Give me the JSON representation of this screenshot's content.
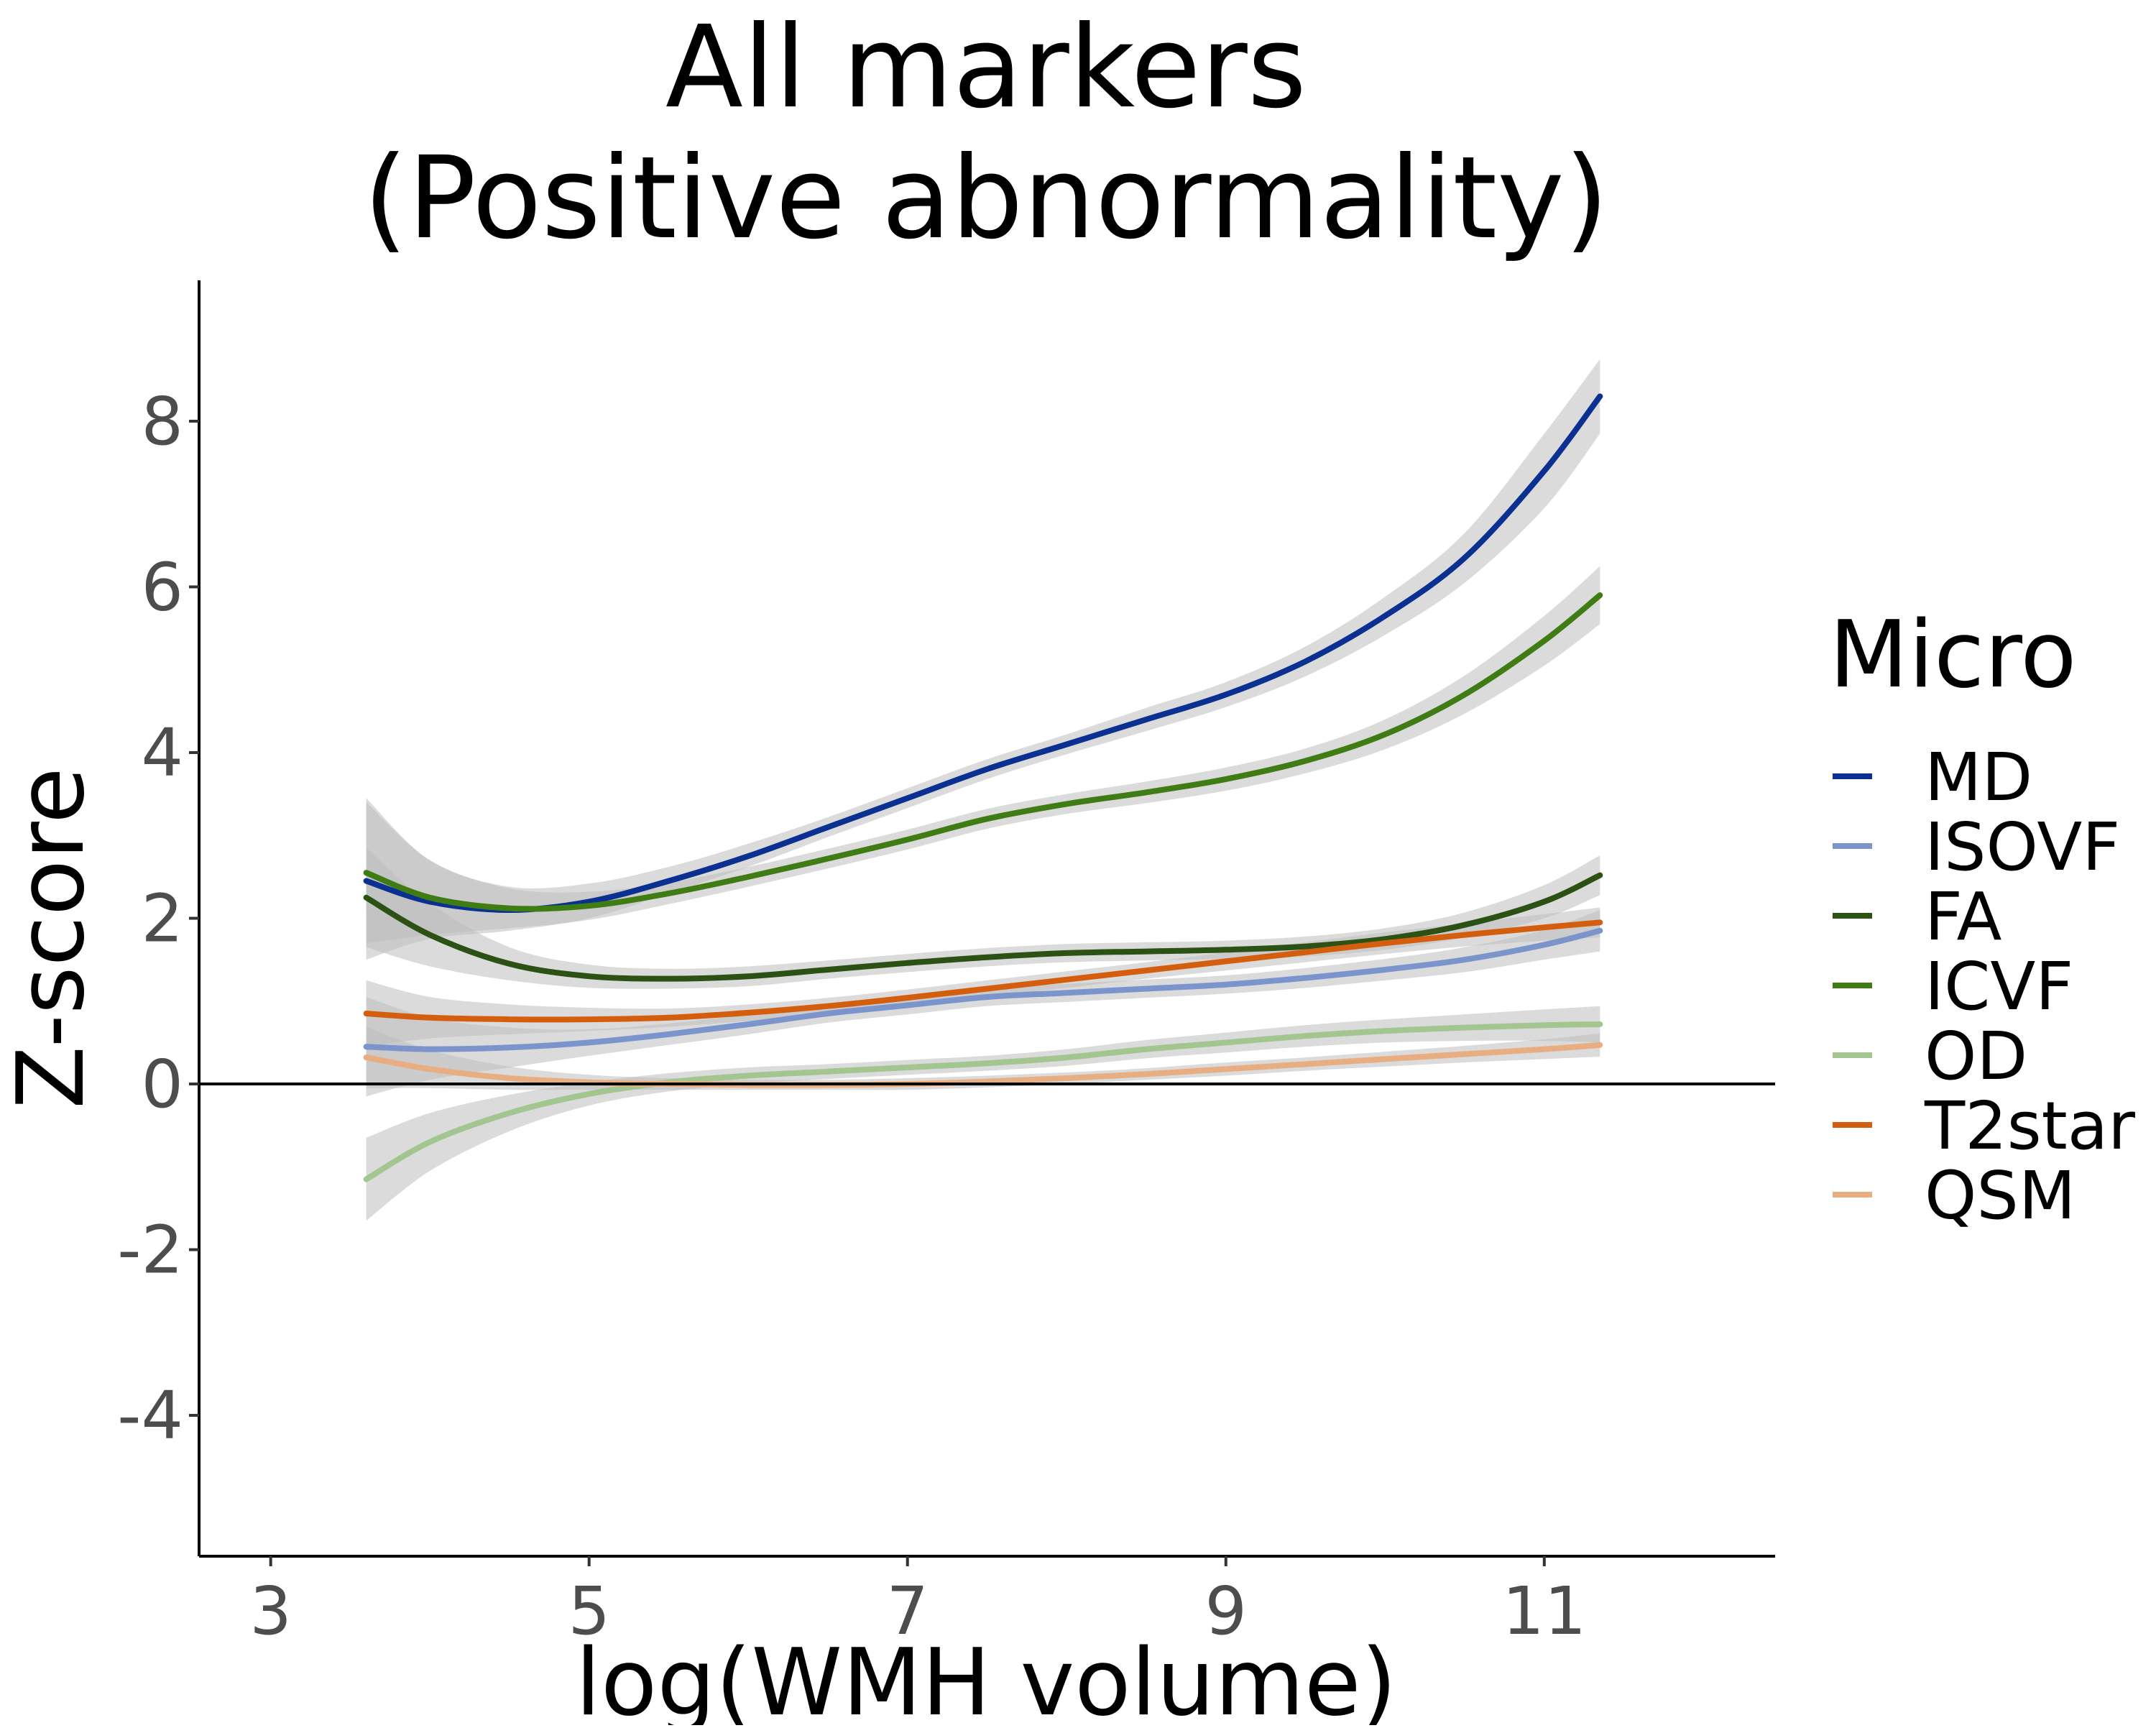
{
  "chart_data": {
    "type": "line",
    "title_lines": [
      "All markers",
      "(Positive abnormality)"
    ],
    "xlabel": "log(WMH volume)",
    "ylabel": "Z-score",
    "xlim": [
      2.55,
      12.45
    ],
    "ylim": [
      -5.7,
      9.7
    ],
    "x_ticks": [
      3,
      5,
      7,
      9,
      11
    ],
    "y_ticks": [
      -4,
      -2,
      0,
      2,
      4,
      6,
      8
    ],
    "grid": false,
    "reference_line_y": 0,
    "legend": {
      "title": "Micro",
      "placement": "right"
    },
    "confidence_band_color": "#bdbdbd",
    "series": [
      {
        "name": "MD",
        "color": "#0a3191",
        "x": [
          3.6,
          4.0,
          4.5,
          5.0,
          5.5,
          6.0,
          6.5,
          7.0,
          7.5,
          8.0,
          8.5,
          9.0,
          9.5,
          10.0,
          10.5,
          11.0,
          11.35
        ],
        "y": [
          2.45,
          2.2,
          2.1,
          2.2,
          2.45,
          2.75,
          3.1,
          3.45,
          3.8,
          4.1,
          4.4,
          4.7,
          5.1,
          5.65,
          6.35,
          7.4,
          8.3
        ],
        "lower": [
          1.5,
          1.75,
          1.85,
          2.0,
          2.3,
          2.62,
          2.98,
          3.33,
          3.68,
          3.98,
          4.26,
          4.55,
          4.92,
          5.42,
          6.05,
          6.95,
          7.85
        ],
        "upper": [
          3.45,
          2.7,
          2.38,
          2.42,
          2.62,
          2.9,
          3.22,
          3.57,
          3.92,
          4.22,
          4.54,
          4.85,
          5.28,
          5.88,
          6.65,
          7.85,
          8.75
        ]
      },
      {
        "name": "ISOVF",
        "color": "#7b94cc",
        "x": [
          3.6,
          4.0,
          4.5,
          5.0,
          5.5,
          6.0,
          6.5,
          7.0,
          7.5,
          8.0,
          8.5,
          9.0,
          9.5,
          10.0,
          10.5,
          11.0,
          11.35
        ],
        "y": [
          0.45,
          0.42,
          0.44,
          0.5,
          0.6,
          0.72,
          0.85,
          0.95,
          1.05,
          1.1,
          1.15,
          1.2,
          1.28,
          1.38,
          1.5,
          1.68,
          1.85
        ],
        "lower": [
          -0.15,
          0.05,
          0.2,
          0.34,
          0.47,
          0.6,
          0.74,
          0.84,
          0.94,
          0.99,
          1.04,
          1.09,
          1.16,
          1.25,
          1.35,
          1.5,
          1.6
        ],
        "upper": [
          1.05,
          0.8,
          0.68,
          0.66,
          0.73,
          0.84,
          0.96,
          1.06,
          1.16,
          1.21,
          1.26,
          1.31,
          1.4,
          1.51,
          1.65,
          1.86,
          2.1
        ]
      },
      {
        "name": "FA",
        "color": "#2b5214",
        "x": [
          3.6,
          4.0,
          4.5,
          5.0,
          5.5,
          6.0,
          6.5,
          7.0,
          7.5,
          8.0,
          8.5,
          9.0,
          9.5,
          10.0,
          10.5,
          11.0,
          11.35
        ],
        "y": [
          2.25,
          1.8,
          1.45,
          1.3,
          1.27,
          1.3,
          1.38,
          1.46,
          1.53,
          1.58,
          1.6,
          1.62,
          1.66,
          1.75,
          1.92,
          2.2,
          2.52
        ],
        "lower": [
          1.65,
          1.42,
          1.25,
          1.16,
          1.15,
          1.18,
          1.27,
          1.35,
          1.42,
          1.47,
          1.49,
          1.51,
          1.54,
          1.62,
          1.77,
          2.0,
          2.28
        ],
        "upper": [
          2.85,
          2.18,
          1.65,
          1.44,
          1.39,
          1.42,
          1.49,
          1.57,
          1.64,
          1.69,
          1.71,
          1.73,
          1.78,
          1.88,
          2.07,
          2.4,
          2.76
        ]
      },
      {
        "name": "ICVF",
        "color": "#3f7d14",
        "x": [
          3.6,
          4.0,
          4.5,
          5.0,
          5.5,
          6.0,
          6.5,
          7.0,
          7.5,
          8.0,
          8.5,
          9.0,
          9.5,
          10.0,
          10.5,
          11.0,
          11.35
        ],
        "y": [
          2.55,
          2.25,
          2.12,
          2.15,
          2.3,
          2.5,
          2.72,
          2.95,
          3.2,
          3.38,
          3.52,
          3.68,
          3.9,
          4.22,
          4.7,
          5.35,
          5.9
        ],
        "lower": [
          1.7,
          1.8,
          1.88,
          1.98,
          2.17,
          2.38,
          2.6,
          2.83,
          3.08,
          3.26,
          3.39,
          3.54,
          3.75,
          4.04,
          4.47,
          5.05,
          5.55
        ],
        "upper": [
          3.4,
          2.7,
          2.36,
          2.32,
          2.43,
          2.62,
          2.84,
          3.07,
          3.32,
          3.5,
          3.65,
          3.82,
          4.05,
          4.4,
          4.93,
          5.65,
          6.25
        ]
      },
      {
        "name": "OD",
        "color": "#a3c58f",
        "x": [
          3.6,
          4.0,
          4.5,
          5.0,
          5.5,
          6.0,
          6.5,
          7.0,
          7.5,
          8.0,
          8.5,
          9.0,
          9.5,
          10.0,
          10.5,
          11.0,
          11.35
        ],
        "y": [
          -1.15,
          -0.7,
          -0.35,
          -0.12,
          0.02,
          0.1,
          0.15,
          0.2,
          0.25,
          0.32,
          0.42,
          0.5,
          0.58,
          0.64,
          0.68,
          0.71,
          0.72
        ],
        "lower": [
          -1.65,
          -1.05,
          -0.57,
          -0.26,
          -0.09,
          0.0,
          0.06,
          0.11,
          0.16,
          0.22,
          0.31,
          0.38,
          0.45,
          0.5,
          0.52,
          0.52,
          0.5
        ],
        "upper": [
          -0.65,
          -0.35,
          -0.13,
          0.02,
          0.13,
          0.2,
          0.24,
          0.29,
          0.34,
          0.42,
          0.53,
          0.62,
          0.71,
          0.78,
          0.84,
          0.9,
          0.94
        ]
      },
      {
        "name": "T2star",
        "color": "#d35f0e",
        "x": [
          3.6,
          4.0,
          4.5,
          5.0,
          5.5,
          6.0,
          6.5,
          7.0,
          7.5,
          8.0,
          8.5,
          9.0,
          9.5,
          10.0,
          10.5,
          11.0,
          11.35
        ],
        "y": [
          0.85,
          0.8,
          0.78,
          0.78,
          0.8,
          0.86,
          0.94,
          1.04,
          1.15,
          1.26,
          1.37,
          1.48,
          1.59,
          1.7,
          1.8,
          1.89,
          1.95
        ],
        "lower": [
          0.45,
          0.55,
          0.6,
          0.64,
          0.69,
          0.76,
          0.84,
          0.94,
          1.05,
          1.16,
          1.27,
          1.37,
          1.47,
          1.57,
          1.66,
          1.73,
          1.77
        ],
        "upper": [
          1.25,
          1.05,
          0.96,
          0.92,
          0.91,
          0.96,
          1.04,
          1.14,
          1.25,
          1.36,
          1.47,
          1.59,
          1.71,
          1.83,
          1.94,
          2.05,
          2.13
        ]
      },
      {
        "name": "QSM",
        "color": "#e8ae82",
        "x": [
          3.6,
          4.0,
          4.5,
          5.0,
          5.5,
          6.0,
          6.5,
          7.0,
          7.5,
          8.0,
          8.5,
          9.0,
          9.5,
          10.0,
          10.5,
          11.0,
          11.35
        ],
        "y": [
          0.32,
          0.18,
          0.07,
          0.02,
          0.0,
          -0.01,
          -0.01,
          0.0,
          0.03,
          0.07,
          0.12,
          0.18,
          0.24,
          0.3,
          0.36,
          0.42,
          0.47
        ],
        "lower": [
          -0.05,
          -0.05,
          -0.07,
          -0.07,
          -0.07,
          -0.07,
          -0.07,
          -0.07,
          -0.04,
          0.0,
          0.05,
          0.1,
          0.16,
          0.21,
          0.26,
          0.3,
          0.33
        ],
        "upper": [
          0.69,
          0.41,
          0.21,
          0.11,
          0.07,
          0.05,
          0.05,
          0.07,
          0.1,
          0.14,
          0.19,
          0.26,
          0.32,
          0.39,
          0.46,
          0.54,
          0.61
        ]
      }
    ]
  }
}
